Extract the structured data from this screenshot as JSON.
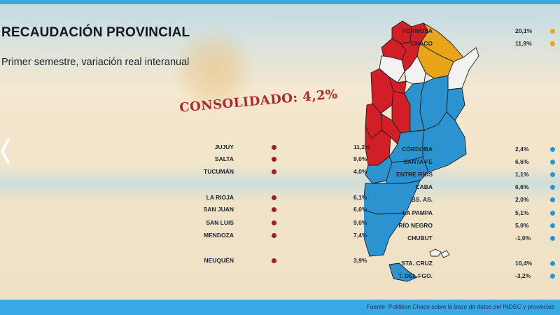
{
  "title": "RECAUDACIÓN PROVINCIAL",
  "subtitle": "Primer semestre, variación real interanual",
  "consolidated": "CONSOLIDADO: 4,2%",
  "source": "Fuente: Politikon Chaco sobre la base de datos del INDEC y provincias",
  "colors": {
    "red": "#d21f27",
    "blue": "#2b94d0",
    "gold": "#e9a51a",
    "white": "#f2f2f2",
    "bar": "#39a9e6"
  },
  "left_list": [
    {
      "name": "JUJUY",
      "value": "11,2%"
    },
    {
      "name": "SALTA",
      "value": "9,0%"
    },
    {
      "name": "TUCUMÁN",
      "value": "4,0%"
    },
    {
      "name": "LA RIOJA",
      "value": "6,1%"
    },
    {
      "name": "SAN JUAN",
      "value": "6,0%"
    },
    {
      "name": "SAN LUIS",
      "value": "9,0%"
    },
    {
      "name": "MENDOZA",
      "value": "7,4%"
    },
    {
      "name": "NEUQUÉN",
      "value": "3,9%"
    }
  ],
  "right_top": [
    {
      "name": "FORMOSA",
      "value": "20,1%"
    },
    {
      "name": "CHACO",
      "value": "11,9%"
    }
  ],
  "right_list": [
    {
      "name": "CÓRDOBA",
      "value": "2,4%"
    },
    {
      "name": "SANTA FE",
      "value": "6,6%"
    },
    {
      "name": "ENTRE RÍOS",
      "value": "1,1%"
    },
    {
      "name": "CABA",
      "value": "6,6%"
    },
    {
      "name": "BS. AS.",
      "value": "2,0%"
    },
    {
      "name": "LA PAMPA",
      "value": "5,1%"
    },
    {
      "name": "RÍO NEGRO",
      "value": "5,0%"
    },
    {
      "name": "CHUBUT",
      "value": "-1,0%"
    },
    {
      "name": "STA. CRUZ",
      "value": "10,4%"
    },
    {
      "name": "T. DEL FGO.",
      "value": "-3,2%"
    }
  ]
}
